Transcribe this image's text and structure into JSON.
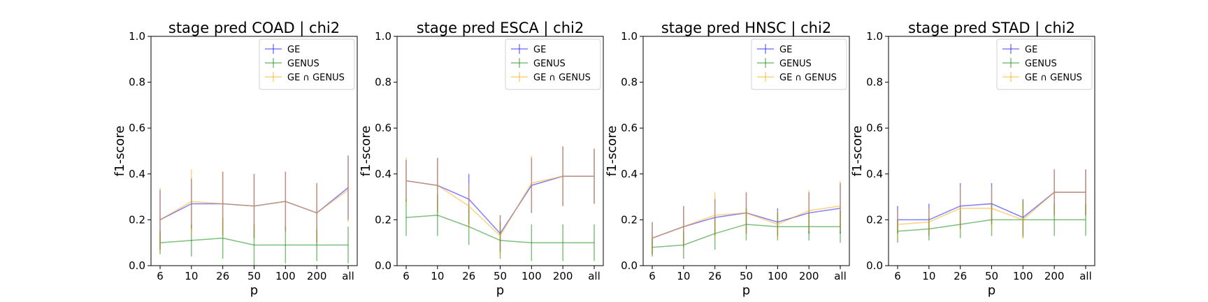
{
  "chart_data": [
    {
      "type": "line",
      "title": "stage pred COAD | chi2",
      "xlabel": "p",
      "ylabel": "f1-score",
      "categories": [
        "6",
        "10",
        "26",
        "50",
        "100",
        "200",
        "all"
      ],
      "ylim": [
        0,
        1
      ],
      "yticks": [
        "0.0",
        "0.2",
        "0.4",
        "0.6",
        "0.8",
        "1.0"
      ],
      "legend_position": "top-right",
      "series": [
        {
          "name": "GE",
          "color": "#0000ff",
          "values": [
            0.2,
            0.27,
            0.27,
            0.26,
            0.28,
            0.23,
            0.34
          ],
          "errors": [
            0.13,
            0.11,
            0.14,
            0.14,
            0.13,
            0.13,
            0.14
          ]
        },
        {
          "name": "GENUS",
          "color": "#008000",
          "values": [
            0.1,
            0.11,
            0.12,
            0.09,
            0.09,
            0.09,
            0.09
          ],
          "errors": [
            0.05,
            0.07,
            0.09,
            0.09,
            0.08,
            0.07,
            0.08
          ]
        },
        {
          "name": "GE ∩ GENUS",
          "color": "#ffa500",
          "values": [
            0.2,
            0.28,
            0.27,
            0.26,
            0.28,
            0.23,
            0.33
          ],
          "errors": [
            0.14,
            0.14,
            0.14,
            0.14,
            0.13,
            0.13,
            0.14
          ]
        }
      ]
    },
    {
      "type": "line",
      "title": "stage pred ESCA | chi2",
      "xlabel": "p",
      "ylabel": "f1-score",
      "categories": [
        "6",
        "10",
        "26",
        "50",
        "100",
        "200",
        "all"
      ],
      "ylim": [
        0,
        1
      ],
      "yticks": [
        "0.0",
        "0.2",
        "0.4",
        "0.6",
        "0.8",
        "1.0"
      ],
      "legend_position": "top-right",
      "series": [
        {
          "name": "GE",
          "color": "#0000ff",
          "values": [
            0.37,
            0.35,
            0.29,
            0.14,
            0.35,
            0.39,
            0.39
          ],
          "errors": [
            0.09,
            0.12,
            0.11,
            0.08,
            0.12,
            0.13,
            0.12
          ]
        },
        {
          "name": "GENUS",
          "color": "#008000",
          "values": [
            0.21,
            0.22,
            0.17,
            0.11,
            0.1,
            0.1,
            0.1
          ],
          "errors": [
            0.08,
            0.09,
            0.08,
            0.08,
            0.08,
            0.08,
            0.08
          ]
        },
        {
          "name": "GE ∩ GENUS",
          "color": "#ffa500",
          "values": [
            0.37,
            0.35,
            0.26,
            0.13,
            0.36,
            0.39,
            0.39
          ],
          "errors": [
            0.1,
            0.12,
            0.1,
            0.09,
            0.12,
            0.13,
            0.12
          ]
        }
      ]
    },
    {
      "type": "line",
      "title": "stage pred HNSC | chi2",
      "xlabel": "p",
      "ylabel": "f1-score",
      "categories": [
        "6",
        "10",
        "26",
        "50",
        "100",
        "200",
        "all"
      ],
      "ylim": [
        0,
        1
      ],
      "yticks": [
        "0.0",
        "0.2",
        "0.4",
        "0.6",
        "0.8",
        "1.0"
      ],
      "legend_position": "top-right",
      "series": [
        {
          "name": "GE",
          "color": "#0000ff",
          "values": [
            0.12,
            0.17,
            0.21,
            0.23,
            0.19,
            0.23,
            0.25
          ],
          "errors": [
            0.07,
            0.09,
            0.08,
            0.09,
            0.06,
            0.09,
            0.11
          ]
        },
        {
          "name": "GENUS",
          "color": "#008000",
          "values": [
            0.08,
            0.09,
            0.14,
            0.18,
            0.17,
            0.17,
            0.17
          ],
          "errors": [
            0.04,
            0.06,
            0.07,
            0.07,
            0.06,
            0.06,
            0.07
          ]
        },
        {
          "name": "GE ∩ GENUS",
          "color": "#ffa500",
          "values": [
            0.12,
            0.17,
            0.22,
            0.23,
            0.18,
            0.24,
            0.26
          ],
          "errors": [
            0.07,
            0.09,
            0.1,
            0.09,
            0.06,
            0.09,
            0.11
          ]
        }
      ]
    },
    {
      "type": "line",
      "title": "stage pred STAD | chi2",
      "xlabel": "p",
      "ylabel": "f1-score",
      "categories": [
        "6",
        "10",
        "26",
        "50",
        "100",
        "200",
        "all"
      ],
      "ylim": [
        0,
        1
      ],
      "yticks": [
        "0.0",
        "0.2",
        "0.4",
        "0.6",
        "0.8",
        "1.0"
      ],
      "legend_position": "top-right",
      "series": [
        {
          "name": "GE",
          "color": "#0000ff",
          "values": [
            0.2,
            0.2,
            0.26,
            0.27,
            0.21,
            0.32,
            0.32
          ],
          "errors": [
            0.06,
            0.07,
            0.1,
            0.09,
            0.08,
            0.1,
            0.1
          ]
        },
        {
          "name": "GENUS",
          "color": "#008000",
          "values": [
            0.15,
            0.16,
            0.18,
            0.2,
            0.2,
            0.2,
            0.2
          ],
          "errors": [
            0.05,
            0.05,
            0.06,
            0.07,
            0.08,
            0.07,
            0.07
          ]
        },
        {
          "name": "GE ∩ GENUS",
          "color": "#ffa500",
          "values": [
            0.18,
            0.19,
            0.25,
            0.25,
            0.2,
            0.32,
            0.32
          ],
          "errors": [
            0.06,
            0.06,
            0.1,
            0.09,
            0.08,
            0.1,
            0.1
          ]
        }
      ]
    }
  ]
}
